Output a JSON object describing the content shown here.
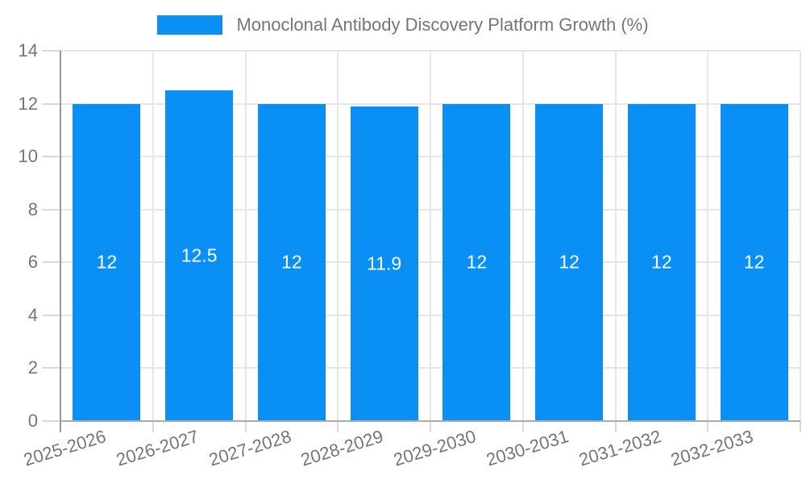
{
  "colors": {
    "bar": "#0A90F5",
    "axis_line": "#999999",
    "baseline": "#ababab",
    "gridline": "#e6e6e6",
    "tick": "#d9d9d9",
    "axis_text": "#757575",
    "value_label_text": "#ffffff",
    "background": "#ffffff"
  },
  "chart_data": {
    "type": "bar",
    "title": "Monoclonal Antibody Discovery Platform Growth (%)",
    "categories": [
      "2025-2026",
      "2026-2027",
      "2027-2028",
      "2028-2029",
      "2029-2030",
      "2030-2031",
      "2031-2032",
      "2032-2033"
    ],
    "series": [
      {
        "name": "Monoclonal Antibody Discovery Platform Growth (%)",
        "values": [
          12,
          12.5,
          12,
          11.9,
          12,
          12,
          12,
          12
        ],
        "value_labels": [
          "12",
          "12.5",
          "12",
          "11.9",
          "12",
          "12",
          "12",
          "12"
        ]
      }
    ],
    "xlabel": "",
    "ylabel": "",
    "ylim": [
      0,
      14
    ],
    "yticks": [
      0,
      2,
      4,
      6,
      8,
      10,
      12,
      14
    ],
    "grid": true,
    "legend_position": "top",
    "x_tick_label_rotation_deg": -17,
    "value_labels_inside_bars": true
  }
}
